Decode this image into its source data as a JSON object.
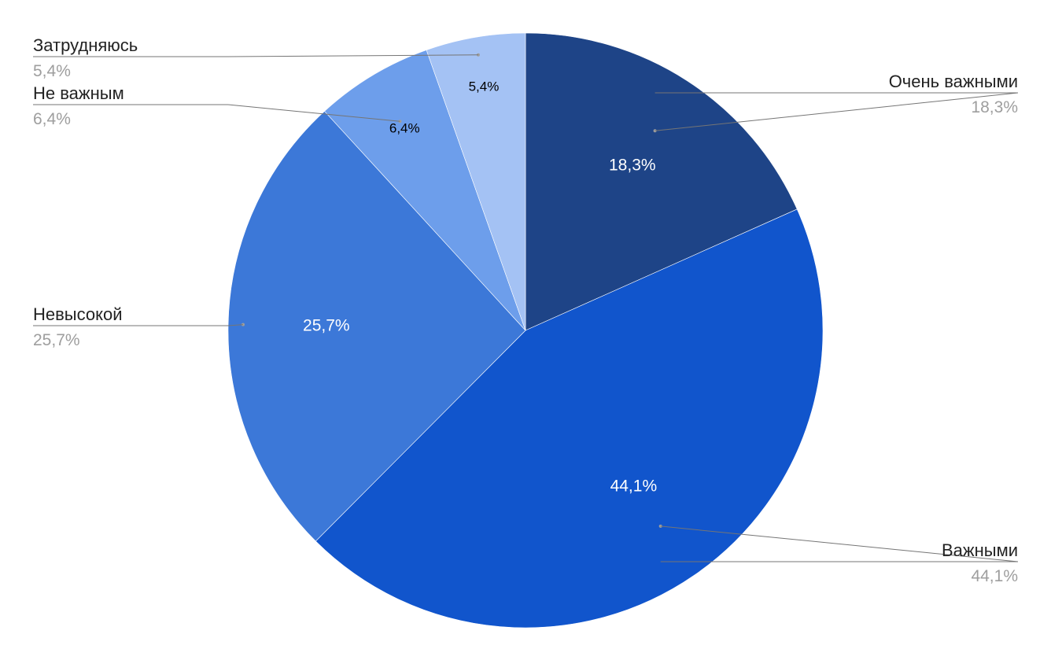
{
  "chart_data": {
    "type": "pie",
    "slices": [
      {
        "label": "Очень важными",
        "value": 18.3,
        "value_text": "18,3%",
        "color": "#1e4487",
        "inner_text_color": "#ffffff"
      },
      {
        "label": "Важными",
        "value": 44.1,
        "value_text": "44,1%",
        "color": "#1155cc",
        "inner_text_color": "#ffffff"
      },
      {
        "label": "Невысокой",
        "value": 25.7,
        "value_text": "25,7%",
        "color": "#3c78d8",
        "inner_text_color": "#ffffff"
      },
      {
        "label": "Не важным",
        "value": 6.4,
        "value_text": "6,4%",
        "color": "#6d9eeb",
        "inner_text_color": "#000000"
      },
      {
        "label": "Затрудняюсь",
        "value": 5.4,
        "value_text": "5,4%",
        "color": "#a4c2f4",
        "inner_text_color": "#000000"
      }
    ],
    "legend": "external-labels"
  }
}
